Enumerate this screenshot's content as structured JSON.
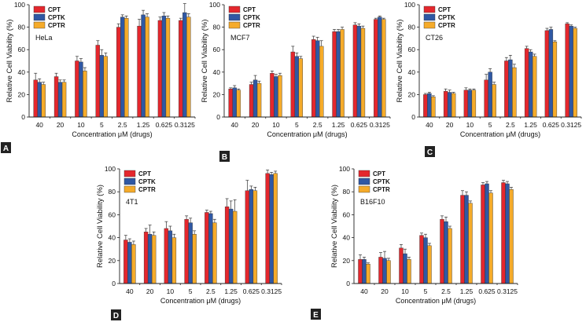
{
  "series_names": [
    "CPT",
    "CPTK",
    "CPTR"
  ],
  "series_colors": [
    "#e4272d",
    "#2f58a4",
    "#f5ab2a"
  ],
  "chart_data": [
    {
      "type": "bar",
      "panel": "A",
      "title": "HeLa",
      "xlabel": "Concentration μM (drugs)",
      "ylabel": "Relative Cell Viability (%)",
      "ylim": [
        0,
        100
      ],
      "yticks": [
        0,
        20,
        40,
        60,
        80,
        100
      ],
      "categories": [
        "40",
        "20",
        "10",
        "5",
        "2.5",
        "1.25",
        "0.625",
        "0.3125"
      ],
      "series": [
        {
          "name": "CPT",
          "values": [
            33,
            36,
            50,
            64,
            80,
            81,
            86,
            86
          ],
          "errors": [
            6,
            3,
            4,
            4,
            3,
            6,
            3,
            2
          ]
        },
        {
          "name": "CPTK",
          "values": [
            31,
            31,
            49,
            55,
            89,
            91,
            90,
            93
          ],
          "errors": [
            3,
            2,
            3,
            5,
            2,
            4,
            3,
            8
          ]
        },
        {
          "name": "CPTR",
          "values": [
            29,
            31,
            41,
            54,
            88,
            89,
            88,
            89
          ],
          "errors": [
            2,
            2,
            3,
            3,
            2,
            3,
            2,
            3
          ]
        }
      ]
    },
    {
      "type": "bar",
      "panel": "B",
      "title": "MCF7",
      "xlabel": "Concentration μM (drugs)",
      "ylabel": "Relative Cell Viability (%)",
      "ylim": [
        0,
        100
      ],
      "yticks": [
        0,
        20,
        40,
        60,
        80,
        100
      ],
      "categories": [
        "40",
        "20",
        "10",
        "5",
        "2.5",
        "1.25",
        "0.625",
        "0.3125"
      ],
      "series": [
        {
          "name": "CPT",
          "values": [
            25,
            29,
            39,
            58,
            69,
            76,
            82,
            87
          ],
          "errors": [
            1,
            2,
            2,
            5,
            3,
            2,
            2,
            1
          ]
        },
        {
          "name": "CPTK",
          "values": [
            26,
            33,
            36,
            54,
            68,
            76,
            81,
            89
          ],
          "errors": [
            2,
            4,
            2,
            3,
            3,
            2,
            2,
            1
          ]
        },
        {
          "name": "CPTR",
          "values": [
            24,
            30,
            37,
            52,
            63,
            78,
            79,
            87
          ],
          "errors": [
            1,
            2,
            2,
            2,
            5,
            2,
            2,
            1
          ]
        }
      ]
    },
    {
      "type": "bar",
      "panel": "C",
      "title": "CT26",
      "xlabel": "Concentration μM (drugs)",
      "ylabel": "Relative Cell Viability (%)",
      "ylim": [
        0,
        100
      ],
      "yticks": [
        0,
        20,
        40,
        60,
        80,
        100
      ],
      "categories": [
        "40",
        "20",
        "10",
        "5",
        "2.5",
        "1.25",
        "0.625",
        "0.3125"
      ],
      "series": [
        {
          "name": "CPT",
          "values": [
            20,
            23,
            24,
            33,
            50,
            61,
            77,
            83
          ],
          "errors": [
            1,
            2,
            2,
            5,
            3,
            2,
            2,
            1
          ]
        },
        {
          "name": "CPTK",
          "values": [
            21,
            22,
            24,
            40,
            51,
            58,
            78,
            81
          ],
          "errors": [
            1,
            2,
            1,
            3,
            4,
            2,
            2,
            1
          ]
        },
        {
          "name": "CPTR",
          "values": [
            18,
            21,
            24,
            29,
            44,
            54,
            67,
            79
          ],
          "errors": [
            1,
            1,
            1,
            2,
            3,
            2,
            1,
            1
          ]
        }
      ]
    },
    {
      "type": "bar",
      "panel": "D",
      "title": "4T1",
      "xlabel": "Concentration μM (drugs)",
      "ylabel": "Relative Cell Viability (%)",
      "ylim": [
        0,
        100
      ],
      "yticks": [
        0,
        20,
        40,
        60,
        80,
        100
      ],
      "categories": [
        "40",
        "20",
        "10",
        "5",
        "2.5",
        "1.25",
        "0.625",
        "0.3125"
      ],
      "series": [
        {
          "name": "CPT",
          "values": [
            38,
            45,
            48,
            56,
            62,
            67,
            81,
            96
          ],
          "errors": [
            4,
            3,
            6,
            3,
            2,
            7,
            9,
            3
          ]
        },
        {
          "name": "CPTK",
          "values": [
            36,
            43,
            46,
            53,
            61,
            65,
            82,
            95
          ],
          "errors": [
            3,
            8,
            4,
            4,
            2,
            7,
            3,
            2
          ]
        },
        {
          "name": "CPTR",
          "values": [
            34,
            42,
            40,
            43,
            53,
            63,
            81,
            96
          ],
          "errors": [
            3,
            3,
            3,
            3,
            3,
            10,
            3,
            2
          ]
        }
      ]
    },
    {
      "type": "bar",
      "panel": "E",
      "title": "B16F10",
      "xlabel": "Concentration μM (drugs)",
      "ylabel": "Relative Cell Viability (%)",
      "ylim": [
        0,
        100
      ],
      "yticks": [
        0,
        20,
        40,
        60,
        80,
        100
      ],
      "categories": [
        "40",
        "20",
        "10",
        "5",
        "2.5",
        "1.25",
        "0.625",
        "0.3125"
      ],
      "series": [
        {
          "name": "CPT",
          "values": [
            21,
            23,
            31,
            42,
            56,
            77,
            86,
            88
          ],
          "errors": [
            4,
            4,
            3,
            2,
            3,
            4,
            2,
            2
          ]
        },
        {
          "name": "CPTK",
          "values": [
            21,
            22,
            26,
            40,
            54,
            77,
            87,
            87
          ],
          "errors": [
            2,
            6,
            4,
            3,
            4,
            3,
            2,
            2
          ]
        },
        {
          "name": "CPTR",
          "values": [
            17,
            20,
            21,
            33,
            48,
            70,
            79,
            82
          ],
          "errors": [
            1,
            2,
            2,
            2,
            2,
            2,
            2,
            2
          ]
        }
      ]
    }
  ]
}
